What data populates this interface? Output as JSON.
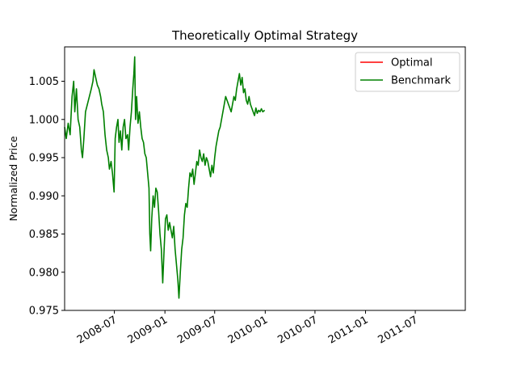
{
  "chart_data": {
    "type": "line",
    "title": "Theoretically Optimal Strategy",
    "xlabel": "",
    "ylabel": "Normalized Price",
    "x_range": [
      "2008-01-02",
      "2011-12-30"
    ],
    "ylim": [
      0.975,
      1.0095
    ],
    "yticks": [
      {
        "value": 0.975,
        "label": "0.975"
      },
      {
        "value": 0.98,
        "label": "0.980"
      },
      {
        "value": 0.985,
        "label": "0.985"
      },
      {
        "value": 0.99,
        "label": "0.990"
      },
      {
        "value": 0.995,
        "label": "0.995"
      },
      {
        "value": 1.0,
        "label": "1.000"
      },
      {
        "value": 1.005,
        "label": "1.005"
      }
    ],
    "xticks": [
      {
        "value": "2008-07-01",
        "label": "2008-07"
      },
      {
        "value": "2009-01-01",
        "label": "2009-01"
      },
      {
        "value": "2009-07-01",
        "label": "2009-07"
      },
      {
        "value": "2010-01-01",
        "label": "2010-01"
      },
      {
        "value": "2010-07-01",
        "label": "2010-07"
      },
      {
        "value": "2011-01-01",
        "label": "2011-01"
      },
      {
        "value": "2011-07-01",
        "label": "2011-07"
      }
    ],
    "grid": false,
    "legend_position": "upper right",
    "series": [
      {
        "name": "Optimal",
        "color": "#ff0000",
        "points": []
      },
      {
        "name": "Benchmark",
        "color": "#008000",
        "points": [
          [
            "2008-01-02",
            0.999
          ],
          [
            "2008-01-08",
            0.9975
          ],
          [
            "2008-01-15",
            0.9995
          ],
          [
            "2008-01-22",
            0.998
          ],
          [
            "2008-01-29",
            1.003
          ],
          [
            "2008-02-04",
            1.005
          ],
          [
            "2008-02-08",
            1.001
          ],
          [
            "2008-02-14",
            1.004
          ],
          [
            "2008-02-20",
            1.0
          ],
          [
            "2008-02-26",
            0.999
          ],
          [
            "2008-03-03",
            0.996
          ],
          [
            "2008-03-07",
            0.995
          ],
          [
            "2008-03-12",
            0.9975
          ],
          [
            "2008-03-18",
            1.001
          ],
          [
            "2008-03-25",
            1.002
          ],
          [
            "2008-04-01",
            1.003
          ],
          [
            "2008-04-08",
            1.004
          ],
          [
            "2008-04-14",
            1.005
          ],
          [
            "2008-04-18",
            1.0065
          ],
          [
            "2008-04-24",
            1.0055
          ],
          [
            "2008-04-30",
            1.0045
          ],
          [
            "2008-05-06",
            1.004
          ],
          [
            "2008-05-12",
            1.003
          ],
          [
            "2008-05-16",
            1.002
          ],
          [
            "2008-05-22",
            1.001
          ],
          [
            "2008-05-28",
            0.998
          ],
          [
            "2008-06-03",
            0.996
          ],
          [
            "2008-06-09",
            0.995
          ],
          [
            "2008-06-13",
            0.9935
          ],
          [
            "2008-06-19",
            0.9945
          ],
          [
            "2008-06-24",
            0.993
          ],
          [
            "2008-06-30",
            0.9905
          ],
          [
            "2008-07-04",
            0.9975
          ],
          [
            "2008-07-09",
            0.999
          ],
          [
            "2008-07-14",
            1.0
          ],
          [
            "2008-07-18",
            0.997
          ],
          [
            "2008-07-23",
            0.9985
          ],
          [
            "2008-07-28",
            0.996
          ],
          [
            "2008-08-02",
            0.999
          ],
          [
            "2008-08-07",
            1.0
          ],
          [
            "2008-08-12",
            0.9975
          ],
          [
            "2008-08-18",
            0.998
          ],
          [
            "2008-08-22",
            0.996
          ],
          [
            "2008-08-27",
            0.999
          ],
          [
            "2008-09-01",
            1.001
          ],
          [
            "2008-09-06",
            1.004
          ],
          [
            "2008-09-10",
            1.006
          ],
          [
            "2008-09-13",
            1.0082
          ],
          [
            "2008-09-16",
            1.0
          ],
          [
            "2008-09-20",
            1.003
          ],
          [
            "2008-09-25",
            0.9995
          ],
          [
            "2008-09-30",
            1.001
          ],
          [
            "2008-10-05",
            0.999
          ],
          [
            "2008-10-10",
            0.9975
          ],
          [
            "2008-10-15",
            0.997
          ],
          [
            "2008-10-20",
            0.9955
          ],
          [
            "2008-10-25",
            0.995
          ],
          [
            "2008-10-30",
            0.993
          ],
          [
            "2008-11-04",
            0.991
          ],
          [
            "2008-11-07",
            0.985
          ],
          [
            "2008-11-10",
            0.9828
          ],
          [
            "2008-11-14",
            0.987
          ],
          [
            "2008-11-19",
            0.99
          ],
          [
            "2008-11-24",
            0.9885
          ],
          [
            "2008-11-29",
            0.991
          ],
          [
            "2008-12-04",
            0.9905
          ],
          [
            "2008-12-09",
            0.988
          ],
          [
            "2008-12-14",
            0.985
          ],
          [
            "2008-12-19",
            0.983
          ],
          [
            "2008-12-24",
            0.9786
          ],
          [
            "2008-12-29",
            0.983
          ],
          [
            "2009-01-03",
            0.987
          ],
          [
            "2009-01-08",
            0.9875
          ],
          [
            "2009-01-13",
            0.9855
          ],
          [
            "2009-01-18",
            0.9865
          ],
          [
            "2009-01-23",
            0.9855
          ],
          [
            "2009-01-28",
            0.9845
          ],
          [
            "2009-02-02",
            0.986
          ],
          [
            "2009-02-07",
            0.983
          ],
          [
            "2009-02-12",
            0.981
          ],
          [
            "2009-02-17",
            0.979
          ],
          [
            "2009-02-21",
            0.9766
          ],
          [
            "2009-02-26",
            0.98
          ],
          [
            "2009-03-03",
            0.983
          ],
          [
            "2009-03-08",
            0.9845
          ],
          [
            "2009-03-13",
            0.9875
          ],
          [
            "2009-03-18",
            0.989
          ],
          [
            "2009-03-23",
            0.9885
          ],
          [
            "2009-03-28",
            0.991
          ],
          [
            "2009-04-02",
            0.993
          ],
          [
            "2009-04-07",
            0.9925
          ],
          [
            "2009-04-12",
            0.9935
          ],
          [
            "2009-04-17",
            0.9915
          ],
          [
            "2009-04-22",
            0.993
          ],
          [
            "2009-04-27",
            0.9945
          ],
          [
            "2009-05-02",
            0.994
          ],
          [
            "2009-05-07",
            0.996
          ],
          [
            "2009-05-12",
            0.995
          ],
          [
            "2009-05-17",
            0.9945
          ],
          [
            "2009-05-22",
            0.9955
          ],
          [
            "2009-05-27",
            0.994
          ],
          [
            "2009-06-01",
            0.995
          ],
          [
            "2009-06-06",
            0.9945
          ],
          [
            "2009-06-11",
            0.9935
          ],
          [
            "2009-06-16",
            0.9925
          ],
          [
            "2009-06-21",
            0.994
          ],
          [
            "2009-06-26",
            0.993
          ],
          [
            "2009-07-01",
            0.995
          ],
          [
            "2009-07-06",
            0.9965
          ],
          [
            "2009-07-11",
            0.9975
          ],
          [
            "2009-07-16",
            0.9985
          ],
          [
            "2009-07-21",
            0.999
          ],
          [
            "2009-07-26",
            1.0
          ],
          [
            "2009-07-31",
            1.001
          ],
          [
            "2009-08-05",
            1.002
          ],
          [
            "2009-08-10",
            1.003
          ],
          [
            "2009-08-15",
            1.0025
          ],
          [
            "2009-08-20",
            1.002
          ],
          [
            "2009-08-25",
            1.0015
          ],
          [
            "2009-08-30",
            1.001
          ],
          [
            "2009-09-04",
            1.002
          ],
          [
            "2009-09-09",
            1.003
          ],
          [
            "2009-09-14",
            1.0025
          ],
          [
            "2009-09-19",
            1.004
          ],
          [
            "2009-09-24",
            1.005
          ],
          [
            "2009-09-29",
            1.006
          ],
          [
            "2009-10-04",
            1.0045
          ],
          [
            "2009-10-09",
            1.0055
          ],
          [
            "2009-10-14",
            1.0035
          ],
          [
            "2009-10-19",
            1.004
          ],
          [
            "2009-10-24",
            1.0025
          ],
          [
            "2009-10-29",
            1.002
          ],
          [
            "2009-11-03",
            1.003
          ],
          [
            "2009-11-08",
            1.002
          ],
          [
            "2009-11-13",
            1.0015
          ],
          [
            "2009-11-18",
            1.001
          ],
          [
            "2009-11-23",
            1.0005
          ],
          [
            "2009-11-28",
            1.0015
          ],
          [
            "2009-12-03",
            1.0008
          ],
          [
            "2009-12-08",
            1.0012
          ],
          [
            "2009-12-13",
            1.001
          ],
          [
            "2009-12-18",
            1.0014
          ],
          [
            "2009-12-23",
            1.001
          ],
          [
            "2009-12-30",
            1.0012
          ]
        ]
      }
    ]
  }
}
